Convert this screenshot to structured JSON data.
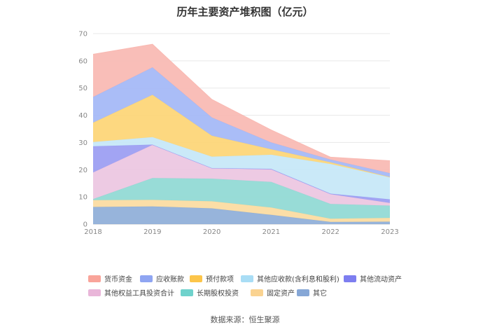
{
  "chart_data": {
    "type": "area",
    "stacked": true,
    "title": "历年主要资产堆积图（亿元）",
    "xlabel": "",
    "ylabel": "",
    "ylim": [
      0,
      70
    ],
    "yticks": [
      0,
      10,
      20,
      30,
      40,
      50,
      60,
      70
    ],
    "categories": [
      "2018",
      "2019",
      "2020",
      "2021",
      "2022",
      "2023"
    ],
    "grid": true,
    "legend_position": "bottom",
    "series": [
      {
        "name": "其它",
        "color": "#8eaed8",
        "values": [
          6.3,
          6.5,
          5.8,
          3.4,
          0.8,
          0.9
        ]
      },
      {
        "name": "固定资产",
        "color": "#fbdba0",
        "values": [
          2.5,
          2.4,
          2.6,
          2.7,
          1.2,
          1.4
        ]
      },
      {
        "name": "长期股权投资",
        "color": "#8fd9d4",
        "values": [
          0.4,
          8.0,
          8.3,
          9.4,
          5.4,
          4.5
        ]
      },
      {
        "name": "其他权益工具投资合计",
        "color": "#ecc5e1",
        "values": [
          9.8,
          12.2,
          3.8,
          4.6,
          3.6,
          1.0
        ]
      },
      {
        "name": "其他流动资产",
        "color": "#9a9cf2",
        "values": [
          9.6,
          0.1,
          0.1,
          0.2,
          0.2,
          1.3
        ]
      },
      {
        "name": "其他应收款(含利息和股利)",
        "color": "#c6e7f7",
        "values": [
          1.6,
          2.8,
          4.2,
          5.2,
          10.9,
          8.1
        ]
      },
      {
        "name": "预付款项",
        "color": "#fdd575",
        "values": [
          7.1,
          15.5,
          7.7,
          2.0,
          0.6,
          0.1
        ]
      },
      {
        "name": "应收账款",
        "color": "#a3b7f6",
        "values": [
          9.4,
          10.1,
          6.7,
          2.5,
          1.0,
          1.4
        ]
      },
      {
        "name": "货币资金",
        "color": "#f9b9b2",
        "values": [
          15.7,
          8.5,
          6.6,
          4.6,
          0.9,
          4.6
        ]
      }
    ]
  },
  "legend": {
    "items": [
      {
        "label": "货币资金",
        "color": "#f9a49a"
      },
      {
        "label": "应收账款",
        "color": "#8fa5f2"
      },
      {
        "label": "预付款项",
        "color": "#fcc54a"
      },
      {
        "label": "其他应收款(含利息和股利)",
        "color": "#a9ddf5"
      },
      {
        "label": "其他流动资产",
        "color": "#7d7ef0"
      },
      {
        "label": "其他权益工具投资合计",
        "color": "#e9b6d9"
      },
      {
        "label": "长期股权投资",
        "color": "#6fd2cc"
      },
      {
        "label": "固定资产",
        "color": "#fad391"
      },
      {
        "label": "其它",
        "color": "#86a7d6"
      }
    ]
  },
  "footer": {
    "source": "数据来源：恒生聚源"
  }
}
